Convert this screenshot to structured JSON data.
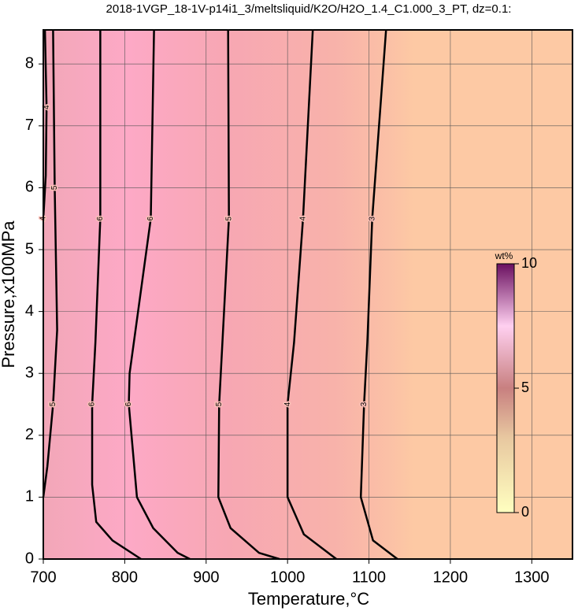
{
  "chart_data": {
    "type": "contour",
    "title": "2018-1VGP_18-1V-p14i1_3/meltsliquid/K2O/H2O_1.4_C1.000_3_PT, dz=0.1:",
    "x_label": "Temperature,°C",
    "y_label": "Pressure,x100MPa",
    "xlim": [
      700,
      1350
    ],
    "ylim": [
      0,
      8.55
    ],
    "xticks": [
      700,
      800,
      900,
      1000,
      1100,
      1200,
      1300
    ],
    "yticks": [
      0,
      1,
      2,
      3,
      4,
      5,
      6,
      7,
      8
    ],
    "grid": true,
    "line_color": "#000000",
    "contours": [
      {
        "level": 6,
        "x": [
          770,
          770,
          764,
          760,
          760,
          765,
          785,
          820
        ],
        "y": [
          8.55,
          5.5,
          3.5,
          2.5,
          1.2,
          0.6,
          0.3,
          0
        ]
      },
      {
        "level": 6,
        "x": [
          836,
          832,
          806,
          805,
          815,
          835,
          865,
          880
        ],
        "y": [
          8.55,
          5.5,
          3,
          2.5,
          1,
          0.5,
          0.1,
          0
        ]
      },
      {
        "level": 5,
        "x": [
          927,
          928,
          920,
          916,
          915,
          930,
          965,
          990
        ],
        "y": [
          8.55,
          5.5,
          3.5,
          2.5,
          1,
          0.5,
          0.1,
          0
        ]
      },
      {
        "level": 4,
        "x": [
          1031,
          1019,
          1008,
          1000,
          1000,
          1020,
          1055,
          1060
        ],
        "y": [
          8.55,
          5.5,
          3.5,
          2.5,
          1,
          0.4,
          0.05,
          0
        ]
      },
      {
        "level": 3,
        "x": [
          1121,
          1104,
          1098,
          1094,
          1090,
          1105,
          1130,
          1135
        ],
        "y": [
          8.55,
          5.5,
          3.5,
          2.5,
          1,
          0.3,
          0.05,
          0
        ]
      },
      {
        "level": 5,
        "x": [
          712,
          714,
          717,
          712,
          705,
          700
        ],
        "y": [
          8.55,
          6,
          3.7,
          2.5,
          1.5,
          1
        ]
      },
      {
        "level": 4,
        "x": [
          702,
          704,
          703,
          700
        ],
        "y": [
          8.55,
          7.3,
          6.2,
          5.5
        ]
      }
    ],
    "colorbar": {
      "label": "wt%",
      "lim": [
        0,
        10
      ],
      "ticks": [
        0,
        5,
        10
      ]
    }
  }
}
